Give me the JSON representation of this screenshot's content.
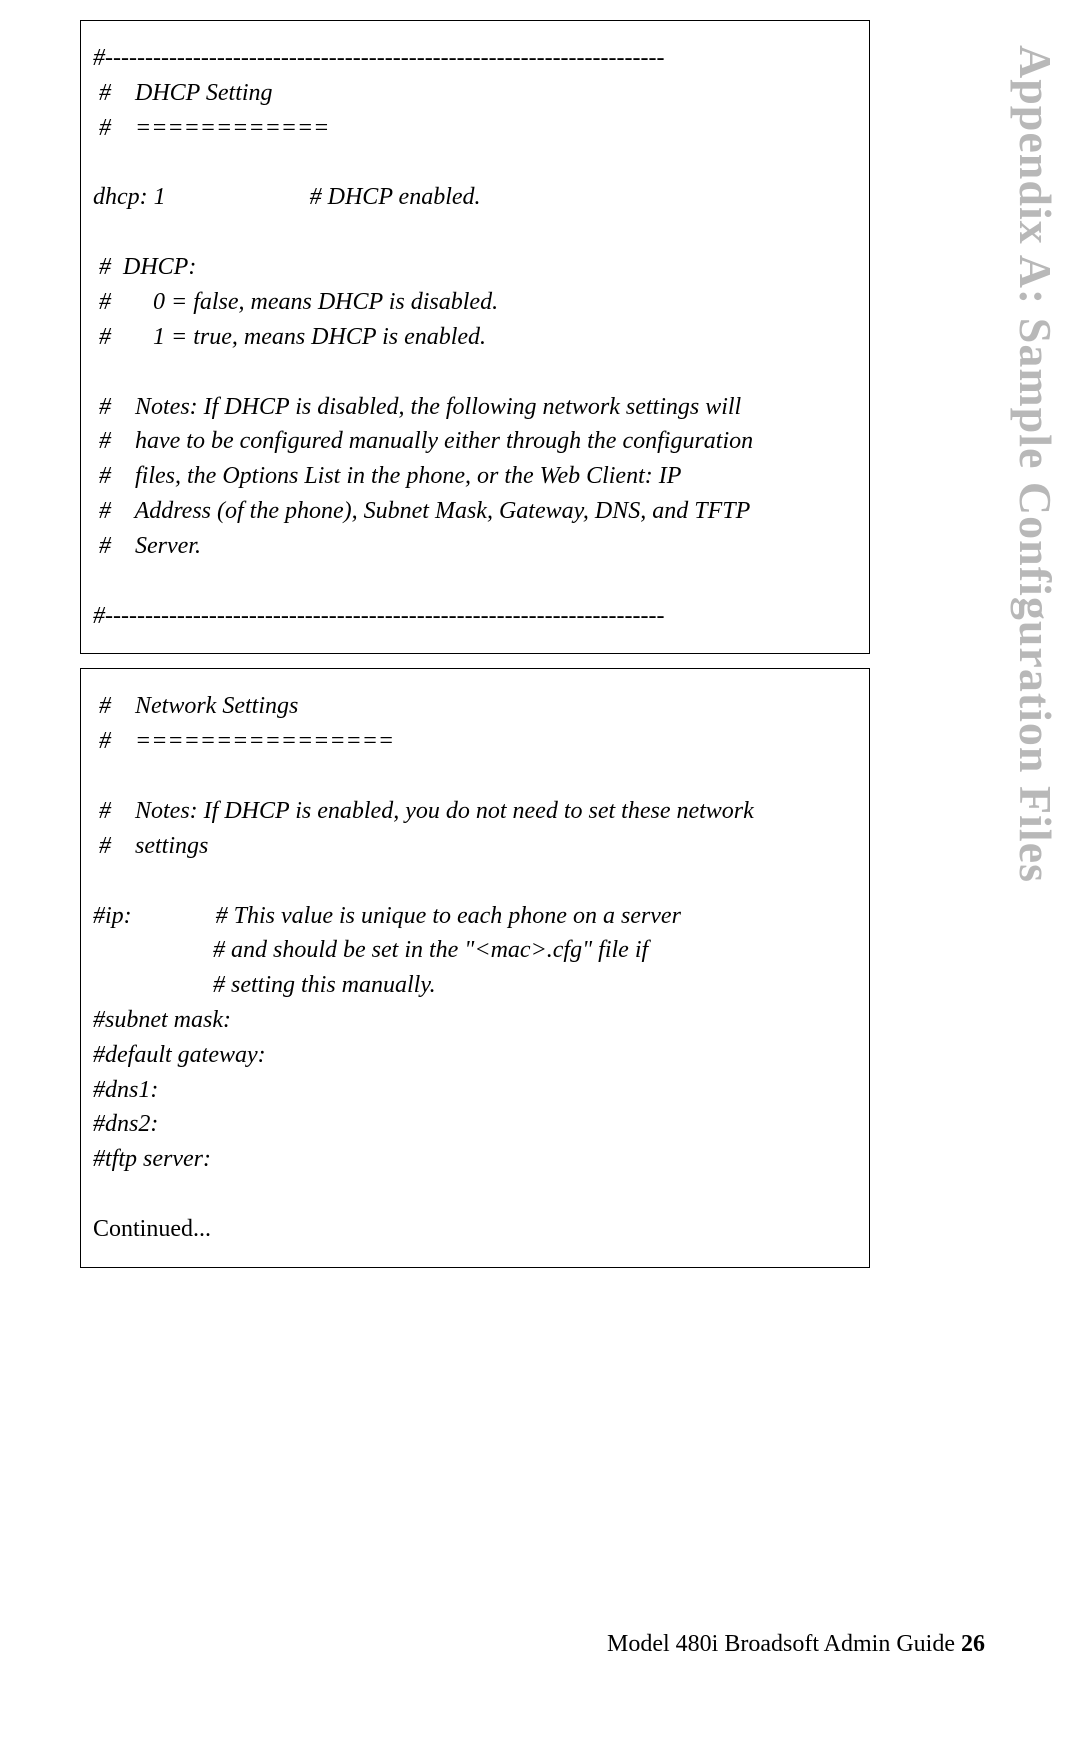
{
  "sidebar": {
    "title": "Appendix A: Sample Configuration Files"
  },
  "box1": {
    "l1": "#----------------------------------------------------------------------",
    "l2": " #    DHCP Setting",
    "l3": " #    ============",
    "l4": "dhcp: 1                        # DHCP enabled.",
    "l5": " #  DHCP:",
    "l6": " #       0 = false, means DHCP is disabled.",
    "l7": " #       1 = true, means DHCP is enabled.",
    "l8": " #    Notes: If DHCP is disabled, the following network settings will",
    "l9": " #    have to be configured manually either through the configuration",
    "l10": " #    files, the Options List in the phone, or the Web Client: IP",
    "l11": " #    Address (of the phone), Subnet Mask, Gateway, DNS, and TFTP",
    "l12": " #    Server.",
    "l13": "#----------------------------------------------------------------------"
  },
  "box2": {
    "l1": " #    Network Settings",
    "l2": " #    ================",
    "l3": " #    Notes: If DHCP is enabled, you do not need to set these network",
    "l4": " #    settings",
    "l5": "#ip:              # This value is unique to each phone on a server",
    "l6": "                    # and should be set in the \"<mac>.cfg\" file if",
    "l7": "                    # setting this manually.",
    "l8": "#subnet mask:",
    "l9": "#default gateway:",
    "l10": "#dns1:",
    "l11": "#dns2:",
    "l12": "#tftp server:",
    "l13": "Continued..."
  },
  "footer": {
    "text": "Model 480i Broadsoft Admin Guide ",
    "page": "26"
  }
}
